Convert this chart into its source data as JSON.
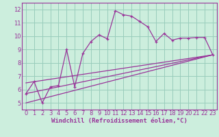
{
  "xlabel": "Windchill (Refroidissement éolien,°C)",
  "bg_color": "#cceedd",
  "line_color": "#993399",
  "grid_color": "#99ccbb",
  "xlim": [
    -0.5,
    23.5
  ],
  "ylim": [
    4.5,
    12.5
  ],
  "xticks": [
    0,
    1,
    2,
    3,
    4,
    5,
    6,
    7,
    8,
    9,
    10,
    11,
    12,
    13,
    14,
    15,
    16,
    17,
    18,
    19,
    20,
    21,
    22,
    23
  ],
  "yticks": [
    5,
    6,
    7,
    8,
    9,
    10,
    11,
    12
  ],
  "main_x": [
    0,
    1,
    2,
    3,
    4,
    5,
    6,
    7,
    8,
    9,
    10,
    11,
    12,
    13,
    14,
    15,
    16,
    17,
    18,
    19,
    20,
    21,
    22,
    23
  ],
  "main_y": [
    5.7,
    6.6,
    5.0,
    6.2,
    6.3,
    9.0,
    6.2,
    8.7,
    9.6,
    10.1,
    9.8,
    11.9,
    11.6,
    11.5,
    11.1,
    10.7,
    9.6,
    10.2,
    9.7,
    9.85,
    9.85,
    9.9,
    9.9,
    8.6
  ],
  "line2_x": [
    0,
    23
  ],
  "line2_y": [
    5.7,
    8.6
  ],
  "line3_x": [
    0,
    23
  ],
  "line3_y": [
    6.5,
    8.6
  ],
  "line4_x": [
    0,
    23
  ],
  "line4_y": [
    5.0,
    8.6
  ],
  "xlabel_fontsize": 6.5,
  "tick_fontsize": 6.0
}
